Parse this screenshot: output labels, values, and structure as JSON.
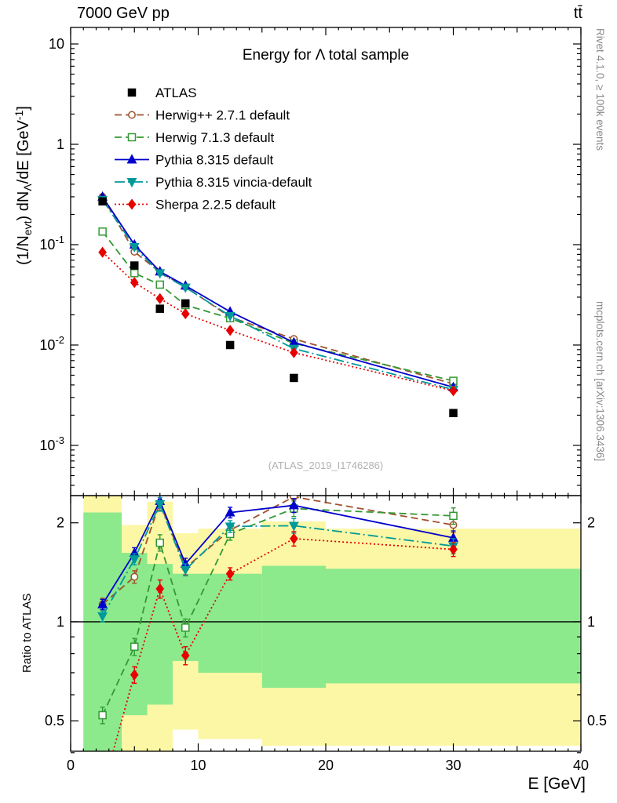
{
  "header": {
    "left": "7000 GeV pp",
    "right": "tt̄"
  },
  "titles": {
    "watermark": "(ATLAS_2019_I1746286)",
    "rivet_note": "Rivet 4.1.0, ≥ 100k events",
    "mcplots_note": "mcplots.cern.ch [arXiv:1306.3436]"
  },
  "ylabel_parts": [
    {
      "t": "(1/N"
    },
    {
      "t": "evt",
      "s": "sub"
    },
    {
      "t": ") dN"
    },
    {
      "t": "Λ",
      "s": "sub"
    },
    {
      "t": "/dE [GeV"
    },
    {
      "t": "-1",
      "s": "sup"
    },
    {
      "t": "]"
    }
  ],
  "chart_data": {
    "type": "line",
    "title": "Energy for Λ total sample",
    "xlabel": "E [GeV]",
    "ylabel": "(1/N_evt) dN_Λ/dE [GeV^-1]",
    "xlim": [
      0,
      40
    ],
    "xticks_major": [
      0,
      10,
      20,
      30,
      40
    ],
    "x": [
      2.5,
      5,
      7,
      9,
      12.5,
      17.5,
      30
    ],
    "main_panel": {
      "ylog": true,
      "ymin": 0.000316,
      "ymax": 14.6,
      "ytick_exponents": [
        1,
        0,
        -1,
        -2,
        -3
      ]
    },
    "ratio_panel": {
      "ylabel": "Ratio to ATLAS",
      "ylog": true,
      "ymin": 0.404,
      "ymax": 2.42,
      "yticks": [
        2,
        1,
        0.5
      ],
      "yticks_minor": [
        0.4,
        0.6,
        0.7,
        0.8,
        0.9
      ],
      "reference": 1
    },
    "series": [
      {
        "id": "atlas",
        "name": "ATLAS",
        "type": "data",
        "color": "#000000",
        "marker": "square-filled",
        "line": null,
        "values": [
          0.27,
          0.062,
          0.023,
          0.026,
          0.01,
          0.0047,
          0.0021
        ]
      },
      {
        "id": "herwigpp",
        "name": "Herwig++ 2.7.1 default",
        "type": "mc",
        "color": "#a0522d",
        "marker": "circle-open",
        "line": "dashed",
        "values": [
          0.3,
          0.085,
          0.053,
          0.038,
          0.019,
          0.0115,
          0.0041
        ],
        "ratio": [
          1.13,
          1.37,
          2.3,
          1.46,
          1.9,
          2.4,
          1.97
        ],
        "ratio_err": [
          0.05,
          0.06,
          0.12,
          0.07,
          0.08,
          0.12,
          0.1
        ]
      },
      {
        "id": "herwig7",
        "name": "Herwig 7.1.3 default",
        "type": "mc",
        "color": "#339933",
        "marker": "square-open",
        "line": "dashed",
        "values": [
          0.135,
          0.052,
          0.04,
          0.025,
          0.0185,
          0.0104,
          0.0044
        ],
        "ratio": [
          0.52,
          0.84,
          1.74,
          0.96,
          1.85,
          2.21,
          2.1
        ],
        "ratio_err": [
          0.03,
          0.05,
          0.1,
          0.06,
          0.08,
          0.12,
          0.12
        ]
      },
      {
        "id": "pythia",
        "name": "Pythia 8.315 default",
        "type": "mc",
        "color": "#0000cc",
        "marker": "triangle-up-filled",
        "line": "solid",
        "values": [
          0.3,
          0.1,
          0.054,
          0.039,
          0.0215,
          0.0106,
          0.0038
        ],
        "ratio": [
          1.13,
          1.62,
          2.33,
          1.5,
          2.15,
          2.26,
          1.8
        ],
        "ratio_err": [
          0.04,
          0.06,
          0.11,
          0.06,
          0.08,
          0.11,
          0.09
        ]
      },
      {
        "id": "vincia",
        "name": "Pythia 8.315 vincia-default",
        "type": "mc",
        "color": "#009999",
        "marker": "triangle-down-filled",
        "line": "dashdot",
        "values": [
          0.28,
          0.095,
          0.052,
          0.0375,
          0.0195,
          0.0092,
          0.0036
        ],
        "ratio": [
          1.04,
          1.55,
          2.28,
          1.44,
          1.95,
          1.96,
          1.7
        ],
        "ratio_err": [
          0.04,
          0.06,
          0.11,
          0.06,
          0.08,
          0.1,
          0.09
        ]
      },
      {
        "id": "sherpa",
        "name": "Sherpa 2.2.5 default",
        "type": "mc",
        "color": "#e60000",
        "marker": "diamond-filled",
        "line": "dotted",
        "values": [
          0.084,
          0.042,
          0.029,
          0.0205,
          0.014,
          0.0084,
          0.0035
        ],
        "ratio": [
          0.31,
          0.69,
          1.26,
          0.79,
          1.4,
          1.79,
          1.66
        ],
        "ratio_err": [
          0.03,
          0.04,
          0.08,
          0.05,
          0.06,
          0.09,
          0.08
        ]
      }
    ],
    "bands": {
      "yellow_color": "#fbf7a5",
      "green_color": "#8ce98c",
      "bins": [
        {
          "x": [
            1,
            4
          ],
          "yellow": [
            0.38,
            2.45
          ],
          "green": [
            0.38,
            2.15
          ]
        },
        {
          "x": [
            4,
            6
          ],
          "yellow": [
            0.38,
            1.97
          ],
          "green": [
            0.52,
            1.62
          ]
        },
        {
          "x": [
            6,
            8
          ],
          "yellow": [
            0.4,
            2.32
          ],
          "green": [
            0.56,
            1.5
          ]
        },
        {
          "x": [
            8,
            10
          ],
          "yellow": [
            0.47,
            1.86
          ],
          "green": [
            0.76,
            1.4
          ]
        },
        {
          "x": [
            10,
            15
          ],
          "yellow": [
            0.44,
            1.92
          ],
          "green": [
            0.7,
            1.4
          ]
        },
        {
          "x": [
            15,
            20
          ],
          "yellow": [
            0.42,
            2.02
          ],
          "green": [
            0.63,
            1.48
          ]
        },
        {
          "x": [
            20,
            40
          ],
          "yellow": [
            0.42,
            1.92
          ],
          "green": [
            0.65,
            1.45
          ]
        }
      ]
    }
  }
}
